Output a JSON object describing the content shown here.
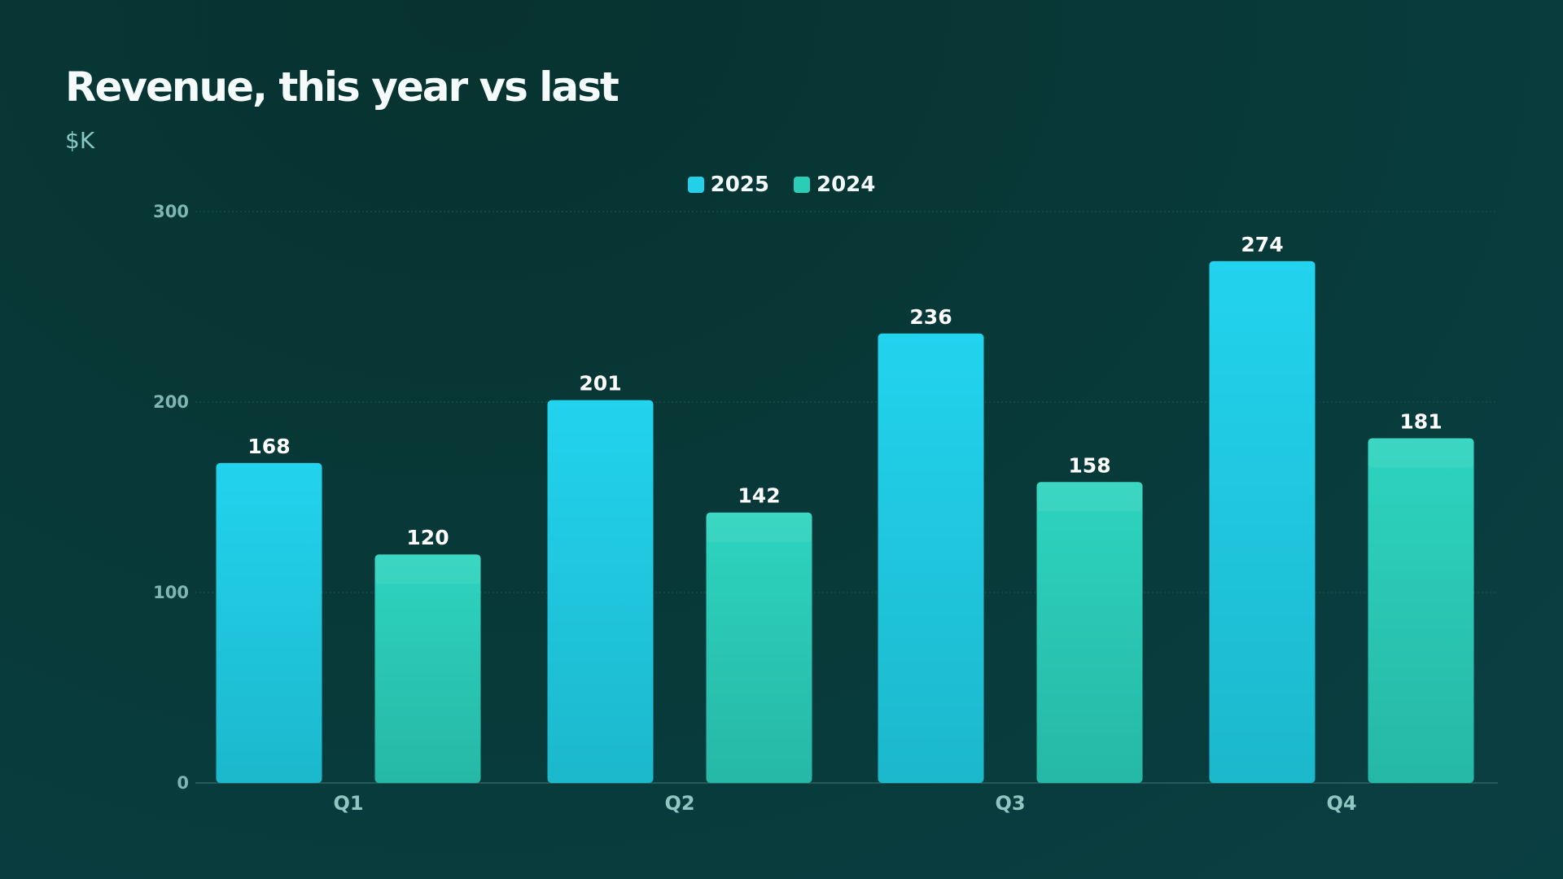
{
  "chart_data": {
    "type": "bar",
    "title": "Revenue, this year vs last",
    "subtitle": "$K",
    "categories": [
      "Q1",
      "Q2",
      "Q3",
      "Q4"
    ],
    "series": [
      {
        "name": "2025",
        "values": [
          168,
          201,
          236,
          274
        ],
        "color": "#22d0ea"
      },
      {
        "name": "2024",
        "values": [
          120,
          142,
          158,
          181
        ],
        "color": "#2ccdb6"
      }
    ],
    "ylim": [
      0,
      300
    ],
    "yticks": [
      0,
      100,
      200,
      300
    ],
    "grid": true,
    "legend_position": "top-center",
    "data_labels": true
  }
}
